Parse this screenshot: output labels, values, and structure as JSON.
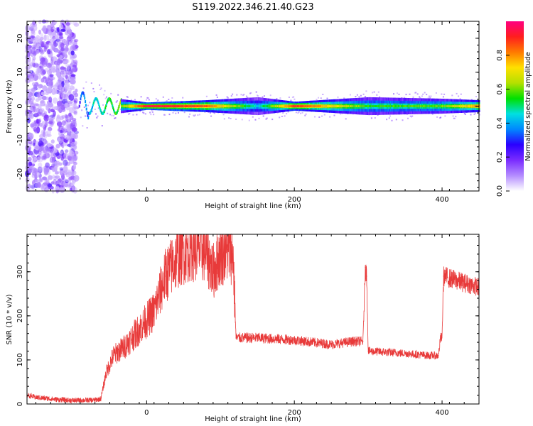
{
  "title": "S119.2022.346.21.40.G23",
  "colors": {
    "snr_line": "#e83a3a",
    "frame": "#000000",
    "background": "#ffffff",
    "colormap": [
      "#ffffff",
      "#b48cff",
      "#7a2cff",
      "#2a00ff",
      "#0088ff",
      "#00e0e0",
      "#00e000",
      "#b4e000",
      "#ffe000",
      "#ff7a00",
      "#ff1e1e",
      "#ff0080"
    ]
  },
  "chart_data": [
    {
      "type": "heatmap",
      "xlabel": "Height of straight line (km)",
      "ylabel": "Frequency (Hz)",
      "xlim": [
        -162,
        450
      ],
      "ylim": [
        -25,
        25
      ],
      "xticks": [
        0,
        200,
        400
      ],
      "yticks": [
        -20,
        -10,
        0,
        10,
        20
      ],
      "colorbar": {
        "label": "Normalized spectral amplitude",
        "range": [
          0,
          1
        ],
        "ticks": [
          0.0,
          0.2,
          0.4,
          0.6,
          0.8
        ]
      },
      "noise_region_x": [
        -162,
        -95
      ],
      "ridge_profile": [
        {
          "x": -90,
          "amplitude": 0.3,
          "freq_spread": 4
        },
        {
          "x": -70,
          "amplitude": 0.45,
          "freq_spread": 2
        },
        {
          "x": -40,
          "amplitude": 0.55,
          "freq_spread": 1
        },
        {
          "x": 0,
          "amplitude": 0.95,
          "freq_spread": 0.5
        },
        {
          "x": 80,
          "amplitude": 0.85,
          "freq_spread": 0.8
        },
        {
          "x": 150,
          "amplitude": 0.45,
          "freq_spread": 1.2
        },
        {
          "x": 200,
          "amplitude": 0.9,
          "freq_spread": 0.6
        },
        {
          "x": 300,
          "amplitude": 0.55,
          "freq_spread": 1.2
        },
        {
          "x": 400,
          "amplitude": 0.6,
          "freq_spread": 1.0
        },
        {
          "x": 450,
          "amplitude": 0.8,
          "freq_spread": 0.8
        }
      ]
    },
    {
      "type": "line",
      "xlabel": "Height of straight line (km)",
      "ylabel": "SNR (10 * v/v)",
      "xlim": [
        -162,
        450
      ],
      "ylim": [
        0,
        385
      ],
      "xticks": [
        0,
        200,
        400
      ],
      "yticks": [
        0,
        100,
        200,
        300
      ],
      "series": [
        {
          "x": [
            -162,
            -150,
            -120,
            -100,
            -70,
            -62,
            -55,
            -45,
            -30,
            -10,
            10,
            25,
            45,
            60,
            80,
            90,
            100,
            110,
            115,
            117,
            121,
            150,
            200,
            250,
            280,
            293,
            296,
            298,
            300,
            302,
            320,
            350,
            380,
            395,
            398,
            400,
            402,
            420,
            440,
            450
          ],
          "y": [
            20,
            15,
            10,
            8,
            9,
            12,
            70,
            110,
            130,
            170,
            210,
            290,
            340,
            355,
            350,
            300,
            340,
            350,
            345,
            340,
            150,
            150,
            145,
            135,
            142,
            142,
            310,
            290,
            120,
            120,
            118,
            115,
            110,
            110,
            150,
            150,
            290,
            280,
            270,
            265
          ]
        }
      ]
    }
  ]
}
